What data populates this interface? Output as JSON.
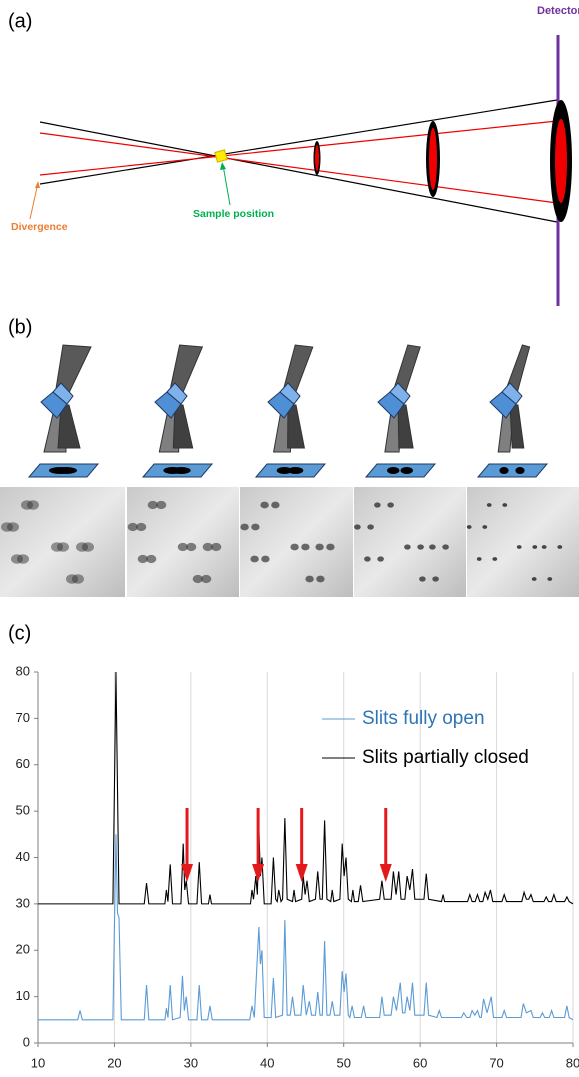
{
  "panel_a": {
    "label": "(a)",
    "detector": "Detector",
    "divergence": "Divergence",
    "sample_position": "Sample position"
  },
  "panel_b": {
    "label": "(b)"
  },
  "chart_data": {
    "type": "line",
    "label": "(c)",
    "xlim": [
      10,
      80
    ],
    "ylim": [
      0,
      80
    ],
    "xticks": [
      10,
      20,
      30,
      40,
      50,
      60,
      70,
      80
    ],
    "yticks": [
      0,
      10,
      20,
      30,
      40,
      50,
      60,
      70,
      80
    ],
    "grid": "x",
    "legend": "upper right",
    "arrows_x": [
      29.5,
      38.8,
      44.5,
      55.5
    ],
    "arrow_color": "#e3191c",
    "series": [
      {
        "name": "Slits fully open",
        "color": "#5b9bd5",
        "text_color": "#2e75b6",
        "x": [
          10,
          15.2,
          15.5,
          15.8,
          19.8,
          20.2,
          20.4,
          20.6,
          20.9,
          23.9,
          24.2,
          24.5,
          26.6,
          26.8,
          27.0,
          27.3,
          27.6,
          28.6,
          28.9,
          29.15,
          29.4,
          29.7,
          30.8,
          31.1,
          31.4,
          32.2,
          32.5,
          32.8,
          37.7,
          38.0,
          38.3,
          38.9,
          39.1,
          39.3,
          39.6,
          40.5,
          40.8,
          41.1,
          42.0,
          42.3,
          42.6,
          43.0,
          43.3,
          43.6,
          44.4,
          44.7,
          45.1,
          45.5,
          45.8,
          46.3,
          46.6,
          46.9,
          47.2,
          47.5,
          47.8,
          48.2,
          48.5,
          48.8,
          49.5,
          49.8,
          50.05,
          50.3,
          50.6,
          50.8,
          51.1,
          51.4,
          52.3,
          52.6,
          52.9,
          54.7,
          55.0,
          55.3,
          56.2,
          56.5,
          56.9,
          57.4,
          57.7,
          58.0,
          58.3,
          58.65,
          59.0,
          59.3,
          60.5,
          60.8,
          61.1,
          62.2,
          62.5,
          62.8,
          65.4,
          65.7,
          66.1,
          66.5,
          66.8,
          67.15,
          67.5,
          67.8,
          68.0,
          68.3,
          68.75,
          69.3,
          69.6,
          70.7,
          71.0,
          71.3,
          73.2,
          73.5,
          73.9,
          74.5,
          74.8,
          75.7,
          76.0,
          76.3,
          76.9,
          77.2,
          77.5,
          78.9,
          79.2,
          79.5,
          80
        ],
        "values": [
          5,
          5,
          7,
          5,
          5,
          45,
          28,
          27,
          5,
          5,
          12.5,
          5,
          5,
          7.5,
          5.5,
          12.5,
          5,
          5.5,
          14.5,
          7,
          10,
          5,
          5,
          12.5,
          5,
          5,
          8,
          5,
          5,
          8,
          5.5,
          25,
          17,
          20,
          5.5,
          5.5,
          14,
          5.5,
          6,
          26.5,
          6,
          6,
          10,
          6,
          6,
          12.5,
          6,
          9,
          6,
          6,
          11,
          6,
          6,
          22,
          6,
          6,
          9,
          6,
          6,
          15.5,
          11,
          15,
          6,
          5.5,
          8,
          5.5,
          5.5,
          8,
          5.5,
          5.5,
          10,
          6,
          6,
          10,
          7,
          13,
          6.5,
          6.5,
          10,
          7,
          13,
          6,
          6,
          13,
          6,
          5.5,
          7,
          5.5,
          5.5,
          6.5,
          5.5,
          5.5,
          7,
          6,
          7,
          5.5,
          5.5,
          9.5,
          6.5,
          10,
          5.5,
          5.5,
          7,
          5.5,
          5.5,
          8.5,
          6.5,
          7,
          5.5,
          5.5,
          6.5,
          5.5,
          5.5,
          7,
          5.5,
          5.5,
          8,
          5.5,
          5
        ]
      },
      {
        "name": "Slits partially closed",
        "color": "#000000",
        "text_color": "#000000",
        "x": [
          10,
          17.5,
          19.8,
          20.2,
          20.6,
          23.9,
          24.2,
          24.5,
          26.6,
          26.8,
          27.0,
          27.3,
          27.6,
          28.7,
          29.0,
          29.2,
          29.4,
          29.7,
          30.8,
          31.1,
          31.4,
          32.3,
          32.5,
          32.7,
          37.8,
          38.0,
          38.2,
          38.5,
          38.7,
          38.9,
          39.1,
          39.3,
          39.6,
          40.5,
          40.8,
          41.1,
          41.3,
          41.5,
          41.8,
          42.0,
          42.3,
          42.6,
          43.3,
          43.5,
          43.7,
          44.5,
          44.7,
          44.95,
          45.2,
          45.5,
          46.3,
          46.6,
          46.9,
          47.2,
          47.5,
          47.8,
          48.3,
          48.5,
          48.7,
          49.5,
          49.8,
          50.05,
          50.3,
          50.6,
          51.0,
          51.2,
          51.4,
          51.9,
          52.2,
          52.5,
          54.7,
          55.0,
          55.3,
          56.2,
          56.5,
          56.85,
          57.2,
          57.5,
          58.0,
          58.3,
          58.65,
          59.0,
          59.3,
          60.5,
          60.8,
          61.1,
          62.8,
          63.0,
          63.2,
          66.2,
          66.5,
          66.8,
          67.2,
          67.5,
          67.8,
          68.2,
          68.5,
          68.85,
          69.2,
          69.5,
          70.7,
          71.0,
          71.3,
          73.3,
          73.6,
          73.9,
          74.2,
          74.5,
          74.8,
          76.2,
          76.5,
          76.8,
          77.2,
          77.5,
          77.8,
          78.9,
          79.2,
          79.5,
          80
        ],
        "values": [
          30,
          30,
          30,
          80,
          30,
          30,
          34.5,
          30,
          30,
          33,
          30.5,
          38.5,
          30,
          30,
          43,
          33,
          35,
          30,
          30,
          39,
          30,
          30,
          32,
          30,
          30,
          33,
          31,
          36,
          32,
          46,
          36,
          40,
          30,
          30,
          40,
          31,
          30.5,
          33,
          30.5,
          31,
          48.5,
          31,
          30.5,
          33,
          30.5,
          31,
          36,
          32,
          35,
          30.5,
          31,
          37,
          31,
          31,
          48,
          31,
          30.5,
          33,
          30.5,
          31,
          43,
          36,
          40,
          31,
          30.5,
          33,
          30.5,
          30.5,
          34,
          30.5,
          31,
          35,
          31,
          31,
          37,
          32,
          37,
          31,
          31,
          36,
          33,
          37.5,
          31,
          31,
          36.5,
          31,
          30.5,
          32,
          30.5,
          30.5,
          32,
          30.5,
          30.5,
          32,
          30.5,
          30.5,
          32.5,
          31,
          33,
          30.5,
          30.5,
          32,
          30.5,
          30.5,
          32.5,
          31,
          31,
          32,
          30.5,
          30.5,
          31.5,
          30.5,
          30.5,
          32,
          30.5,
          30.5,
          31.5,
          30.5,
          30
        ]
      }
    ]
  }
}
